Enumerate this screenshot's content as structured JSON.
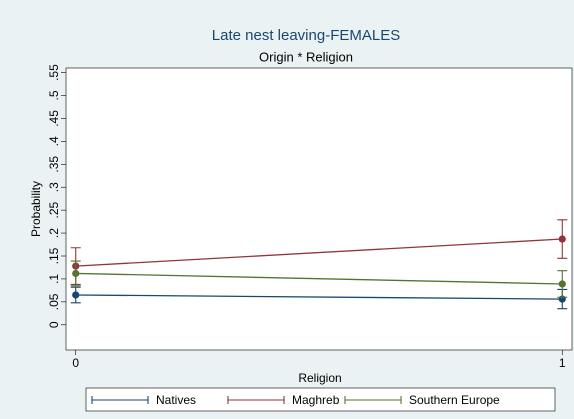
{
  "chart_data": {
    "type": "line",
    "title": "Late nest leaving-FEMALES",
    "subtitle": "Origin * Religion",
    "x_label": "Religion",
    "y_label": "Probability",
    "x": [
      0,
      1
    ],
    "series": [
      {
        "name": "Natives",
        "color": "#1a476f",
        "values": [
          0.065,
          0.056
        ],
        "errors": [
          0.017,
          0.021
        ]
      },
      {
        "name": "Maghreb",
        "color": "#90353b",
        "values": [
          0.128,
          0.187
        ],
        "errors": [
          0.04,
          0.042
        ]
      },
      {
        "name": "Southern Europe",
        "color": "#55752f",
        "values": [
          0.112,
          0.089
        ],
        "errors": [
          0.027,
          0.029
        ]
      }
    ],
    "xlim": [
      -0.02,
      1.02
    ],
    "xticks": [
      0,
      1
    ],
    "ylim": [
      -0.055,
      0.56
    ],
    "yticks": [
      0,
      {
        "value": 0.05,
        "label": ".05"
      },
      {
        "value": 0.1,
        "label": ".1"
      },
      {
        "value": 0.15,
        "label": ".15"
      },
      {
        "value": 0.2,
        "label": ".2"
      },
      {
        "value": 0.25,
        "label": ".25"
      },
      {
        "value": 0.3,
        "label": ".3"
      },
      {
        "value": 0.35,
        "label": ".35"
      },
      {
        "value": 0.4,
        "label": ".4"
      },
      {
        "value": 0.45,
        "label": ".45"
      },
      {
        "value": 0.5,
        "label": ".5"
      },
      {
        "value": 0.55,
        "label": ".55"
      }
    ],
    "grid": false,
    "legend": "bottom"
  }
}
